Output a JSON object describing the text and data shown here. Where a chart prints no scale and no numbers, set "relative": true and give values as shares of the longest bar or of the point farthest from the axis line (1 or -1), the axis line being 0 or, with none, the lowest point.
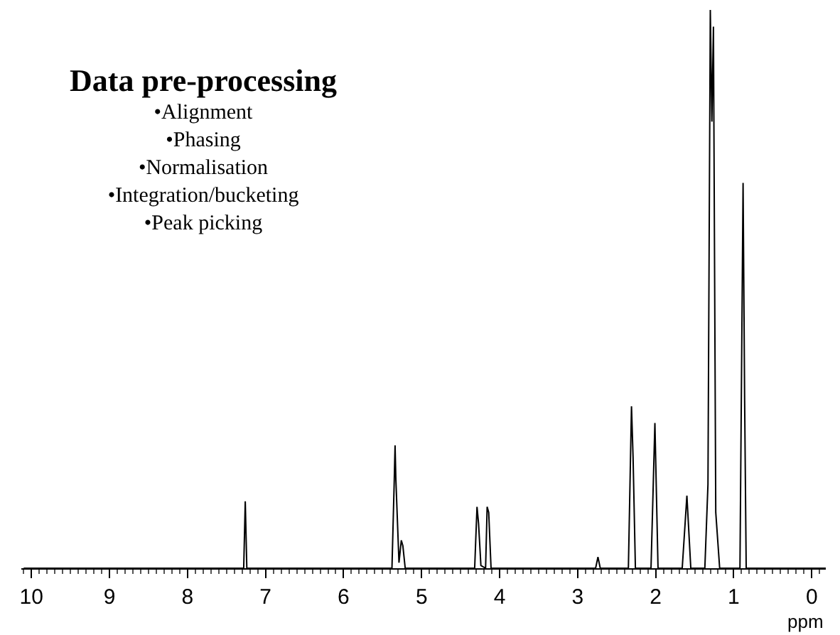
{
  "chart_data": {
    "type": "line",
    "relative": true,
    "xlabel": "ppm",
    "xlim": [
      10.13,
      -0.18
    ],
    "xticks": [
      10,
      9,
      8,
      7,
      6,
      5,
      4,
      3,
      2,
      1,
      0
    ],
    "annotations": [
      "Data pre-processing",
      "•Alignment",
      "•Phasing",
      "•Normalisation",
      "•Integration/bucketing",
      "•Peak picking"
    ],
    "series": [
      {
        "color": "#000000",
        "x": [
          10.1,
          7.28,
          7.26,
          7.24,
          5.38,
          5.35,
          5.34,
          5.33,
          5.29,
          5.26,
          5.24,
          5.21,
          4.32,
          4.29,
          4.27,
          4.24,
          4.18,
          4.16,
          4.14,
          4.11,
          2.77,
          2.74,
          2.71,
          2.35,
          2.31,
          2.29,
          2.26,
          2.06,
          2.01,
          1.97,
          1.66,
          1.6,
          1.55,
          1.37,
          1.33,
          1.3,
          1.28,
          1.26,
          1.23,
          1.18,
          0.92,
          0.88,
          0.86,
          0.84,
          -0.18
        ],
        "values": [
          0,
          0,
          0.12,
          0,
          0,
          0.16,
          0.22,
          0.16,
          0.01,
          0.05,
          0.04,
          0,
          0,
          0.11,
          0.08,
          0.005,
          0,
          0.11,
          0.1,
          0,
          0,
          0.02,
          0,
          0,
          0.29,
          0.2,
          0,
          0,
          0.26,
          0,
          0,
          0.13,
          0,
          0,
          0.15,
          1.0,
          0.8,
          0.97,
          0.1,
          0,
          0,
          0.69,
          0.3,
          0,
          0
        ]
      }
    ]
  }
}
